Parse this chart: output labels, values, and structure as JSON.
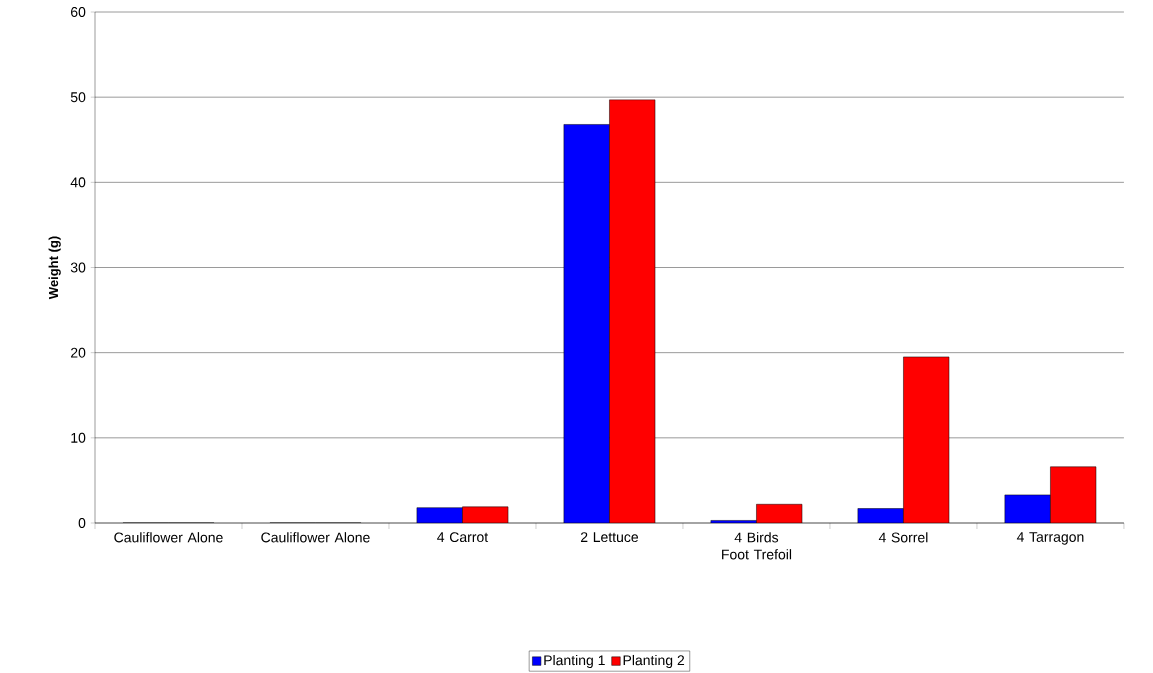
{
  "chart_data": {
    "type": "bar",
    "ylabel": "Weight (g)",
    "categories": [
      "Cauliflower Alone",
      "Cauliflower Alone",
      "4 Carrot",
      "2 Lettuce",
      "4 Birds Foot Trefoil",
      "4 Sorrel",
      "4 Tarragon"
    ],
    "series": [
      {
        "name": "Planting 1",
        "color": "#0000ff",
        "values": [
          0,
          0,
          1.8,
          46.8,
          0.3,
          1.7,
          3.3
        ]
      },
      {
        "name": "Planting 2",
        "color": "#ff0000",
        "values": [
          0,
          0,
          1.9,
          49.7,
          2.2,
          19.5,
          6.6
        ]
      }
    ],
    "ylim": [
      0,
      60
    ],
    "yticks": [
      0,
      10,
      20,
      30,
      40,
      50,
      60
    ],
    "grid": "y",
    "legend": "bottom"
  }
}
